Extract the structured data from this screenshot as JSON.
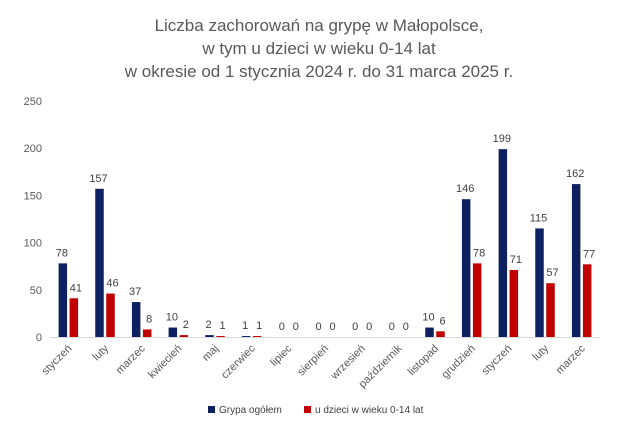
{
  "chart_data": {
    "type": "bar",
    "title_lines": [
      "Liczba zachorowań na grypę w Małopolsce,",
      "w tym u dzieci w wieku 0-14 lat",
      "w okresie od 1 stycznia 2024 r. do 31 marca 2025 r."
    ],
    "xlabel": "",
    "ylabel": "",
    "ylim": [
      0,
      250
    ],
    "yticks": [
      0,
      50,
      100,
      150,
      200,
      250
    ],
    "grid": false,
    "legend_position": "bottom",
    "categories": [
      "styczeń",
      "luty",
      "marzec",
      "kwiecień",
      "maj",
      "czerwiec",
      "lipiec",
      "sierpień",
      "wrzesień",
      "październik",
      "listopad",
      "grudzień",
      "styczeń",
      "luty",
      "marzec"
    ],
    "series": [
      {
        "name": "Grypa ogółem",
        "color": "#0d2060",
        "values": [
          78,
          157,
          37,
          10,
          2,
          1,
          0,
          0,
          0,
          0,
          10,
          146,
          199,
          115,
          162
        ]
      },
      {
        "name": "u dzieci w wieku 0-14 lat",
        "color": "#c00000",
        "values": [
          41,
          46,
          8,
          2,
          1,
          1,
          0,
          0,
          0,
          0,
          6,
          78,
          71,
          57,
          77
        ]
      }
    ]
  }
}
